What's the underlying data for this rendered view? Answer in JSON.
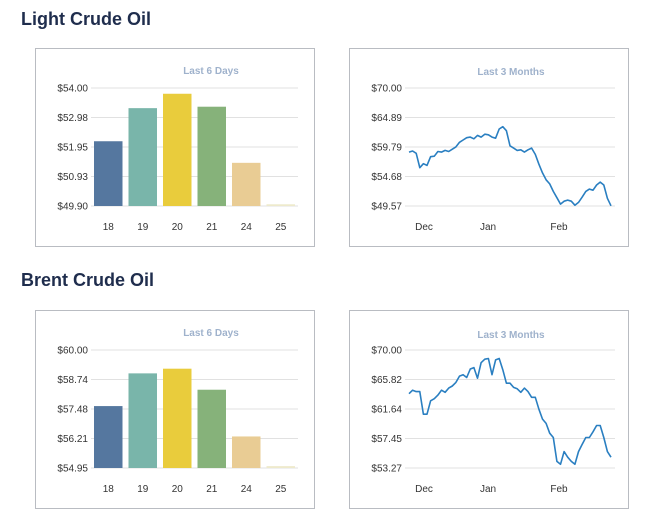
{
  "sections": [
    {
      "title": "Light Crude Oil",
      "bar_chart": {
        "title": "Last 6 Days",
        "y_ticks": [
          "$54.00",
          "$52.98",
          "$51.95",
          "$50.93",
          "$49.90"
        ],
        "x_ticks": [
          "18",
          "19",
          "20",
          "21",
          "24",
          "25"
        ]
      },
      "line_chart": {
        "title": "Last 3 Months",
        "y_ticks": [
          "$70.00",
          "$64.89",
          "$59.79",
          "$54.68",
          "$49.57"
        ],
        "x_ticks": [
          "Dec",
          "Jan",
          "Feb"
        ]
      }
    },
    {
      "title": "Brent Crude Oil",
      "bar_chart": {
        "title": "Last 6 Days",
        "y_ticks": [
          "$60.00",
          "$58.74",
          "$57.48",
          "$56.21",
          "$54.95"
        ],
        "x_ticks": [
          "18",
          "19",
          "20",
          "21",
          "24",
          "25"
        ]
      },
      "line_chart": {
        "title": "Last 3 Months",
        "y_ticks": [
          "$70.00",
          "$65.82",
          "$61.64",
          "$57.45",
          "$53.27"
        ],
        "x_ticks": [
          "Dec",
          "Jan",
          "Feb"
        ]
      }
    }
  ],
  "colors": {
    "title": "#1f2d4d",
    "panel_title": "#9fb2cc",
    "border": "#b9bcc2",
    "line": "#2a7fc1",
    "bars": [
      "#55779f",
      "#79b5aa",
      "#e9cc3c",
      "#86b27a",
      "#e9cc94",
      "#eeeacc"
    ]
  },
  "chart_data": [
    {
      "type": "bar",
      "title": "Last 6 Days",
      "categories": [
        "18",
        "19",
        "20",
        "21",
        "24",
        "25"
      ],
      "values": [
        52.15,
        53.3,
        53.8,
        53.35,
        51.4,
        49.96
      ],
      "ylim": [
        49.9,
        54.0
      ],
      "grid": true
    },
    {
      "type": "line",
      "title": "Last 3 Months",
      "x_ticks": [
        "Dec",
        "Jan",
        "Feb"
      ],
      "values": [
        58.9,
        59.1,
        58.7,
        56.2,
        56.9,
        56.6,
        58.1,
        58.2,
        59.0,
        58.9,
        59.2,
        59.0,
        59.4,
        59.8,
        60.6,
        61.0,
        61.4,
        61.5,
        61.2,
        61.8,
        61.5,
        62.0,
        61.9,
        61.5,
        61.3,
        62.9,
        63.3,
        62.6,
        60.0,
        59.6,
        59.2,
        59.3,
        58.9,
        59.3,
        59.6,
        58.5,
        56.8,
        55.3,
        54.1,
        53.4,
        52.1,
        51.0,
        49.9,
        50.4,
        50.6,
        50.4,
        49.7,
        50.2,
        51.1,
        52.1,
        52.5,
        52.3,
        53.2,
        53.7,
        53.2,
        50.9,
        49.6
      ],
      "ylim": [
        49.57,
        70.0
      ],
      "grid": true
    },
    {
      "type": "bar",
      "title": "Last 6 Days",
      "categories": [
        "18",
        "19",
        "20",
        "21",
        "24",
        "25"
      ],
      "values": [
        57.6,
        59.0,
        59.2,
        58.3,
        56.3,
        55.03
      ],
      "ylim": [
        54.95,
        60.0
      ],
      "grid": true
    },
    {
      "type": "line",
      "title": "Last 3 Months",
      "x_ticks": [
        "Dec",
        "Jan",
        "Feb"
      ],
      "values": [
        63.8,
        64.3,
        64.1,
        64.1,
        60.9,
        60.9,
        62.8,
        63.1,
        63.6,
        64.3,
        64.0,
        64.6,
        64.9,
        65.4,
        66.3,
        66.5,
        66.1,
        67.3,
        67.5,
        66.0,
        68.2,
        68.7,
        68.8,
        66.5,
        68.6,
        68.8,
        67.2,
        65.3,
        65.3,
        64.7,
        64.5,
        64.0,
        64.6,
        64.1,
        63.3,
        63.3,
        61.6,
        60.2,
        59.6,
        58.2,
        57.6,
        54.2,
        53.8,
        55.6,
        54.8,
        54.2,
        53.8,
        55.6,
        56.6,
        57.6,
        57.6,
        58.4,
        59.3,
        59.3,
        57.6,
        55.6,
        54.8
      ],
      "ylim": [
        53.27,
        70.0
      ],
      "grid": true
    }
  ]
}
